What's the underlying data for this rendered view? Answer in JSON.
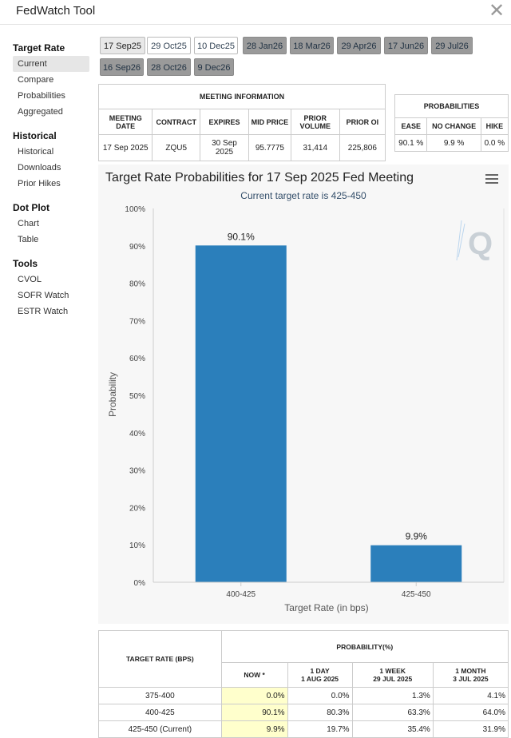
{
  "app_title": "FedWatch Tool",
  "sidebar": {
    "sections": [
      {
        "title": "Target Rate",
        "items": [
          "Current",
          "Compare",
          "Probabilities",
          "Aggregated"
        ]
      },
      {
        "title": "Historical",
        "items": [
          "Historical",
          "Downloads",
          "Prior Hikes"
        ]
      },
      {
        "title": "Dot Plot",
        "items": [
          "Chart",
          "Table"
        ]
      },
      {
        "title": "Tools",
        "items": [
          "CVOL",
          "SOFR Watch",
          "ESTR Watch"
        ]
      }
    ],
    "active": "Current"
  },
  "meeting_tabs": [
    "17 Sep25",
    "29 Oct25",
    "10 Dec25",
    "28 Jan26",
    "18 Mar26",
    "29 Apr26",
    "17 Jun26",
    "29 Jul26",
    "16 Sep26",
    "28 Oct26",
    "9 Dec26"
  ],
  "selected_tab": "17 Sep25",
  "meeting_info": {
    "title": "MEETING INFORMATION",
    "headers": [
      "MEETING DATE",
      "CONTRACT",
      "EXPIRES",
      "MID PRICE",
      "PRIOR VOLUME",
      "PRIOR OI"
    ],
    "values": [
      "17 Sep 2025",
      "ZQU5",
      "30 Sep 2025",
      "95.7775",
      "31,414",
      "225,806"
    ]
  },
  "probabilities_box": {
    "title": "PROBABILITIES",
    "headers": [
      "EASE",
      "NO CHANGE",
      "HIKE"
    ],
    "values": [
      "90.1 %",
      "9.9 %",
      "0.0 %"
    ]
  },
  "chart_data": {
    "type": "bar",
    "title": "Target Rate Probabilities for 17 Sep 2025 Fed Meeting",
    "subtitle": "Current target rate is 425-450",
    "xlabel": "Target Rate (in bps)",
    "ylabel": "Probability",
    "categories": [
      "400-425",
      "425-450"
    ],
    "values": [
      90.1,
      9.9
    ],
    "data_labels": [
      "90.1%",
      "9.9%"
    ],
    "ylim": [
      0,
      100
    ],
    "yticks": [
      "0%",
      "10%",
      "20%",
      "30%",
      "40%",
      "50%",
      "60%",
      "70%",
      "80%",
      "90%",
      "100%"
    ],
    "bar_color": "#2b7fbb",
    "grid": false
  },
  "prob_table": {
    "col_target": "TARGET RATE (BPS)",
    "col_group": "PROBABILITY(%)",
    "subcols": [
      {
        "line1": "NOW *",
        "line2": ""
      },
      {
        "line1": "1 DAY",
        "line2": "1 AUG 2025"
      },
      {
        "line1": "1 WEEK",
        "line2": "29 JUL 2025"
      },
      {
        "line1": "1 MONTH",
        "line2": "3 JUL 2025"
      }
    ],
    "rows": [
      {
        "rate": "375-400",
        "now": "0.0%",
        "day": "0.0%",
        "week": "1.3%",
        "month": "4.1%"
      },
      {
        "rate": "400-425",
        "now": "90.1%",
        "day": "80.3%",
        "week": "63.3%",
        "month": "64.0%"
      },
      {
        "rate": "425-450 (Current)",
        "now": "9.9%",
        "day": "19.7%",
        "week": "35.4%",
        "month": "31.9%"
      }
    ]
  }
}
